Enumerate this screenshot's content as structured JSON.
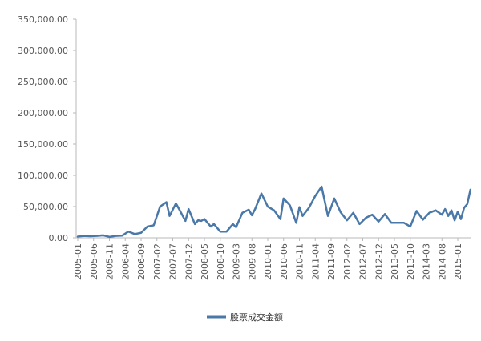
{
  "chart_data": {
    "type": "line",
    "title": "",
    "xlabel": "",
    "ylabel": "",
    "ylim": [
      0,
      350000
    ],
    "yticks": [
      "0.00",
      "50,000.00",
      "100,000.00",
      "150,000.00",
      "200,000.00",
      "250,000.00",
      "300,000.00",
      "350,000.00"
    ],
    "xticks": [
      "2005-01",
      "2005-06",
      "2005-11",
      "2006-04",
      "2006-09",
      "2007-02",
      "2007-07",
      "2007-12",
      "2008-05",
      "2008-10",
      "2009-03",
      "2009-08",
      "2010-01",
      "2010-06",
      "2010-11",
      "2011-04",
      "2011-09",
      "2012-02",
      "2012-07",
      "2012-12",
      "2013-05",
      "2013-10",
      "2014-03",
      "2014-08",
      "2015-01"
    ],
    "grid": false,
    "legend_position": "bottom",
    "series": [
      {
        "name": "股票成交金额",
        "color": "#4a78a8",
        "x": [
          "2005-01",
          "2005-03",
          "2005-05",
          "2005-07",
          "2005-09",
          "2005-11",
          "2006-01",
          "2006-03",
          "2006-05",
          "2006-07",
          "2006-09",
          "2006-11",
          "2007-01",
          "2007-03",
          "2007-05",
          "2007-06",
          "2007-08",
          "2007-09",
          "2007-11",
          "2007-12",
          "2008-02",
          "2008-03",
          "2008-04",
          "2008-05",
          "2008-07",
          "2008-08",
          "2008-10",
          "2008-12",
          "2009-02",
          "2009-03",
          "2009-05",
          "2009-07",
          "2009-08",
          "2009-09",
          "2009-11",
          "2010-01",
          "2010-03",
          "2010-05",
          "2010-06",
          "2010-08",
          "2010-10",
          "2010-11",
          "2010-12",
          "2011-02",
          "2011-04",
          "2011-06",
          "2011-08",
          "2011-10",
          "2011-12",
          "2012-02",
          "2012-04",
          "2012-06",
          "2012-08",
          "2012-10",
          "2012-12",
          "2013-02",
          "2013-04",
          "2013-06",
          "2013-08",
          "2013-10",
          "2013-12",
          "2014-02",
          "2014-04",
          "2014-06",
          "2014-08",
          "2014-09",
          "2014-10",
          "2014-11",
          "2014-12",
          "2015-01",
          "2015-02",
          "2015-03",
          "2015-04",
          "2015-05"
        ],
        "values": [
          2000,
          3000,
          2500,
          3000,
          4000,
          1500,
          3000,
          3500,
          10000,
          6000,
          8000,
          18000,
          20000,
          50000,
          57000,
          35000,
          55000,
          46000,
          27000,
          46000,
          22000,
          28000,
          27000,
          30000,
          18000,
          22000,
          10000,
          10000,
          22000,
          17000,
          40000,
          45000,
          36000,
          46000,
          71000,
          50000,
          44000,
          30000,
          63000,
          52000,
          24000,
          49000,
          35000,
          48000,
          67000,
          82000,
          35000,
          63000,
          41000,
          28000,
          40000,
          22000,
          32000,
          37000,
          26000,
          38000,
          24000,
          24000,
          24000,
          18000,
          43000,
          29000,
          40000,
          44000,
          37000,
          46000,
          35000,
          44000,
          28000,
          42000,
          30000,
          48000,
          54000,
          77000
        ]
      }
    ]
  }
}
